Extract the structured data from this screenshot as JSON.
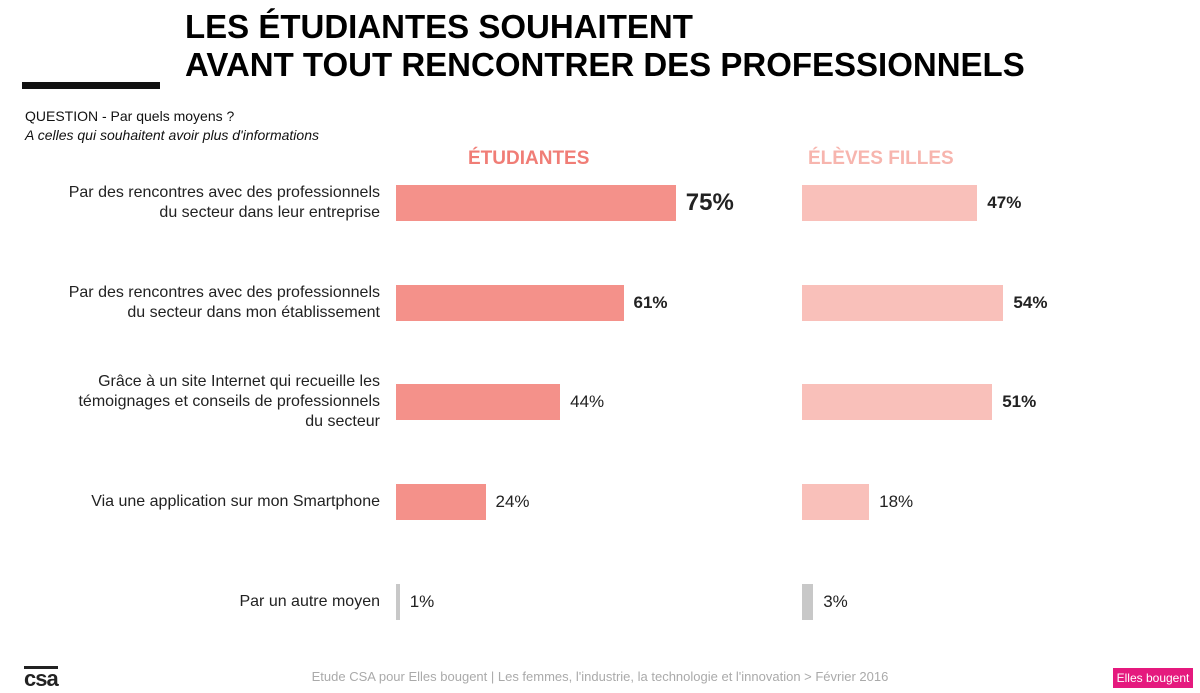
{
  "chart_data": {
    "type": "bar",
    "title": [
      "LES ÉTUDIANTES SOUHAITENT",
      "AVANT TOUT RENCONTRER DES PROFESSIONNELS"
    ],
    "question": "QUESTION - Par quels moyens ?",
    "subtitle": "A celles qui souhaitent avoir plus d'informations",
    "categories": [
      "Par des rencontres avec des professionnels\ndu secteur dans leur entreprise",
      "Par des rencontres avec des professionnels\ndu secteur dans mon établissement",
      "Grâce à un site Internet qui recueille les\ntémoignages et conseils de professionnels\ndu secteur",
      "Via une application sur mon Smartphone",
      "Par un autre moyen"
    ],
    "series": [
      {
        "name": "ÉTUDIANTES",
        "color": "#f07d76",
        "bar_colors": [
          "#f4918a",
          "#f4918a",
          "#f4918a",
          "#f4918a",
          "#c8c8c8"
        ],
        "values": [
          75,
          61,
          44,
          24,
          1
        ],
        "value_labels": [
          "75%",
          "61%",
          "44%",
          "24%",
          "1%"
        ],
        "emphasis": [
          "large",
          "bold",
          "normal",
          "normal",
          "normal"
        ]
      },
      {
        "name": "ÉLÈVES FILLES",
        "color": "#f7b5ae",
        "bar_colors": [
          "#f9c0ba",
          "#f9c0ba",
          "#f9c0ba",
          "#f9c0ba",
          "#c8c8c8"
        ],
        "values": [
          47,
          54,
          51,
          18,
          3
        ],
        "value_labels": [
          "47%",
          "54%",
          "51%",
          "18%",
          "3%"
        ],
        "emphasis": [
          "bold",
          "bold",
          "bold",
          "normal",
          "normal"
        ]
      }
    ],
    "footer": "Etude CSA pour Elles bougent | Les femmes, l'industrie, la technologie et l'innovation > Février 2016",
    "logo_left": "csa",
    "logo_right": "Elles bougent"
  }
}
